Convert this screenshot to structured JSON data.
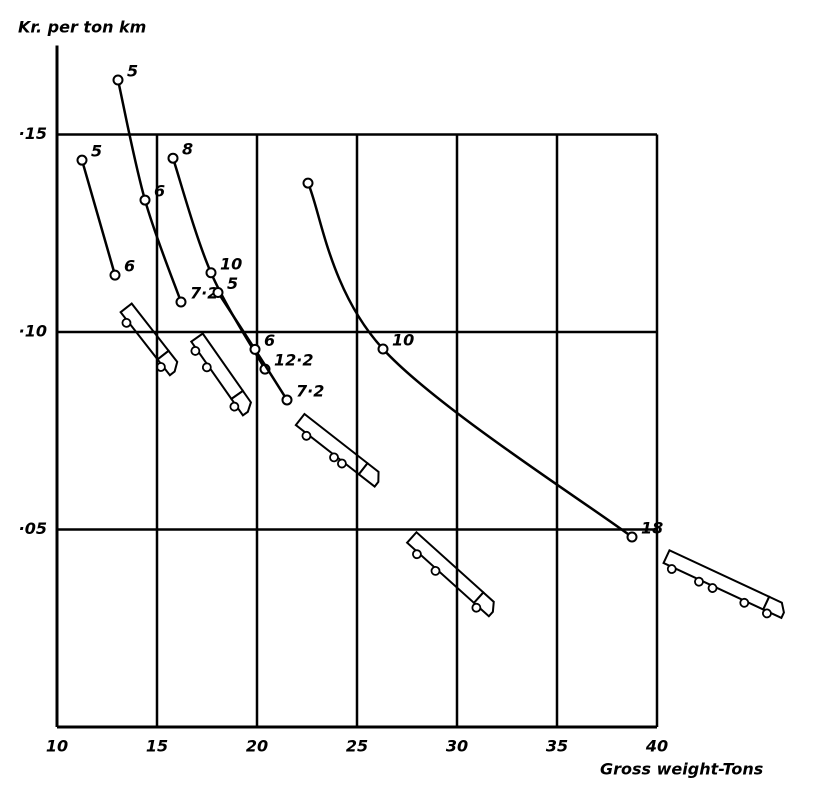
{
  "chart_data": {
    "type": "line",
    "y_label": "Kr. per ton km",
    "x_label": "Gross weight-Tons",
    "xlim": [
      10,
      40
    ],
    "ylim": [
      0,
      0.17
    ],
    "xticks": [
      10,
      15,
      20,
      25,
      30,
      35,
      40
    ],
    "yticks": [
      {
        "value": 0.05,
        "label": "·05"
      },
      {
        "value": 0.1,
        "label": "·10"
      },
      {
        "value": 0.15,
        "label": "·15"
      }
    ],
    "grid": true,
    "series": [
      {
        "color": "#000",
        "x": [
          11.25,
          12.9
        ],
        "values": [
          0.1435,
          0.1144
        ],
        "labels": [
          "5",
          "6"
        ]
      },
      {
        "color": "#000",
        "x": [
          13.05,
          14.4,
          16.2
        ],
        "values": [
          0.1638,
          0.1334,
          0.1076
        ],
        "labels": [
          "5",
          "6",
          "7·2"
        ]
      },
      {
        "color": "#000",
        "x": [
          15.8,
          17.7,
          20.4
        ],
        "values": [
          0.144,
          0.115,
          0.0906
        ],
        "labels": [
          "8",
          "10",
          "12·2"
        ]
      },
      {
        "color": "#000",
        "x": [
          18.05,
          19.9,
          21.5
        ],
        "values": [
          0.11,
          0.0956,
          0.0828
        ],
        "labels": [
          "5",
          "6",
          "7·2"
        ]
      },
      {
        "color": "#000",
        "x": [
          22.55,
          26.3,
          38.75
        ],
        "values": [
          0.1377,
          0.0957,
          0.0481
        ],
        "labels": [
          null,
          "10",
          "18"
        ]
      }
    ]
  }
}
